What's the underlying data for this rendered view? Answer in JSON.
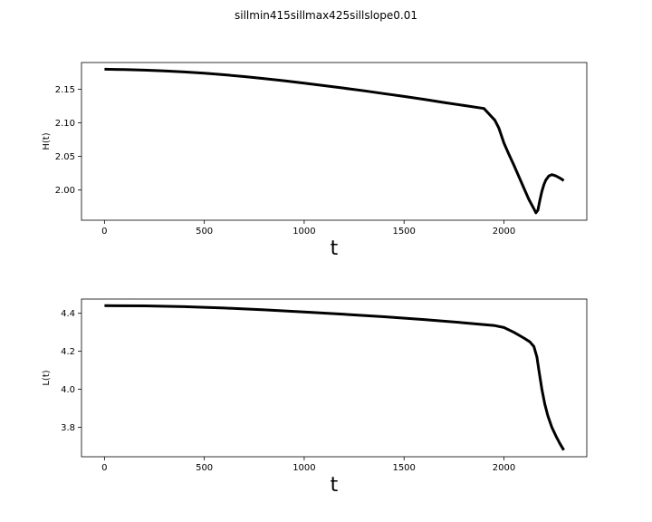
{
  "figure": {
    "suptitle": "sillmin415sillmax425sillslope0.01"
  },
  "chart_data": [
    {
      "type": "line",
      "title": "",
      "xlabel": "t",
      "ylabel": "H(t)",
      "xlim": [
        -115,
        2415
      ],
      "ylim": [
        1.955,
        2.19
      ],
      "xticks": [
        0,
        500,
        1000,
        1500,
        2000
      ],
      "yticks": [
        2.0,
        2.05,
        2.1,
        2.15
      ],
      "ytick_labels": [
        "2.00",
        "2.05",
        "2.10",
        "2.15"
      ],
      "grid": false,
      "color": "#000000",
      "series": [
        {
          "x": [
            0,
            100,
            200,
            300,
            400,
            500,
            600,
            700,
            800,
            900,
            1000,
            1100,
            1200,
            1300,
            1400,
            1500,
            1600,
            1700,
            1800,
            1900,
            1955,
            1975,
            2000,
            2025,
            2050,
            2075,
            2100,
            2125,
            2150,
            2160,
            2170,
            2180,
            2190,
            2200,
            2210,
            2225,
            2240,
            2260,
            2280,
            2300
          ],
          "y": [
            2.18,
            2.1795,
            2.1787,
            2.1775,
            2.176,
            2.174,
            2.1717,
            2.169,
            2.166,
            2.1628,
            2.1593,
            2.1556,
            2.1518,
            2.1478,
            2.1437,
            2.1395,
            2.1351,
            2.1305,
            2.126,
            2.1215,
            2.104,
            2.092,
            2.07,
            2.053,
            2.037,
            2.02,
            2.003,
            1.986,
            1.972,
            1.966,
            1.97,
            1.985,
            1.998,
            2.008,
            2.015,
            2.021,
            2.023,
            2.021,
            2.018,
            2.014
          ]
        }
      ]
    },
    {
      "type": "line",
      "title": "",
      "xlabel": "t",
      "ylabel": "L(t)",
      "xlim": [
        -115,
        2415
      ],
      "ylim": [
        3.645,
        4.475
      ],
      "xticks": [
        0,
        500,
        1000,
        1500,
        2000
      ],
      "yticks": [
        3.8,
        4.0,
        4.2,
        4.4
      ],
      "ytick_labels": [
        "3.8",
        "4.0",
        "4.2",
        "4.4"
      ],
      "grid": false,
      "color": "#000000",
      "series": [
        {
          "x": [
            0,
            200,
            400,
            600,
            800,
            1000,
            1200,
            1400,
            1600,
            1800,
            1955,
            2000,
            2050,
            2100,
            2130,
            2150,
            2165,
            2175,
            2190,
            2205,
            2220,
            2240,
            2260,
            2280,
            2300
          ],
          "y": [
            4.44,
            4.439,
            4.435,
            4.428,
            4.418,
            4.407,
            4.395,
            4.382,
            4.367,
            4.35,
            4.335,
            4.325,
            4.3,
            4.27,
            4.25,
            4.225,
            4.17,
            4.1,
            4.0,
            3.92,
            3.86,
            3.8,
            3.755,
            3.715,
            3.68
          ]
        }
      ]
    }
  ]
}
